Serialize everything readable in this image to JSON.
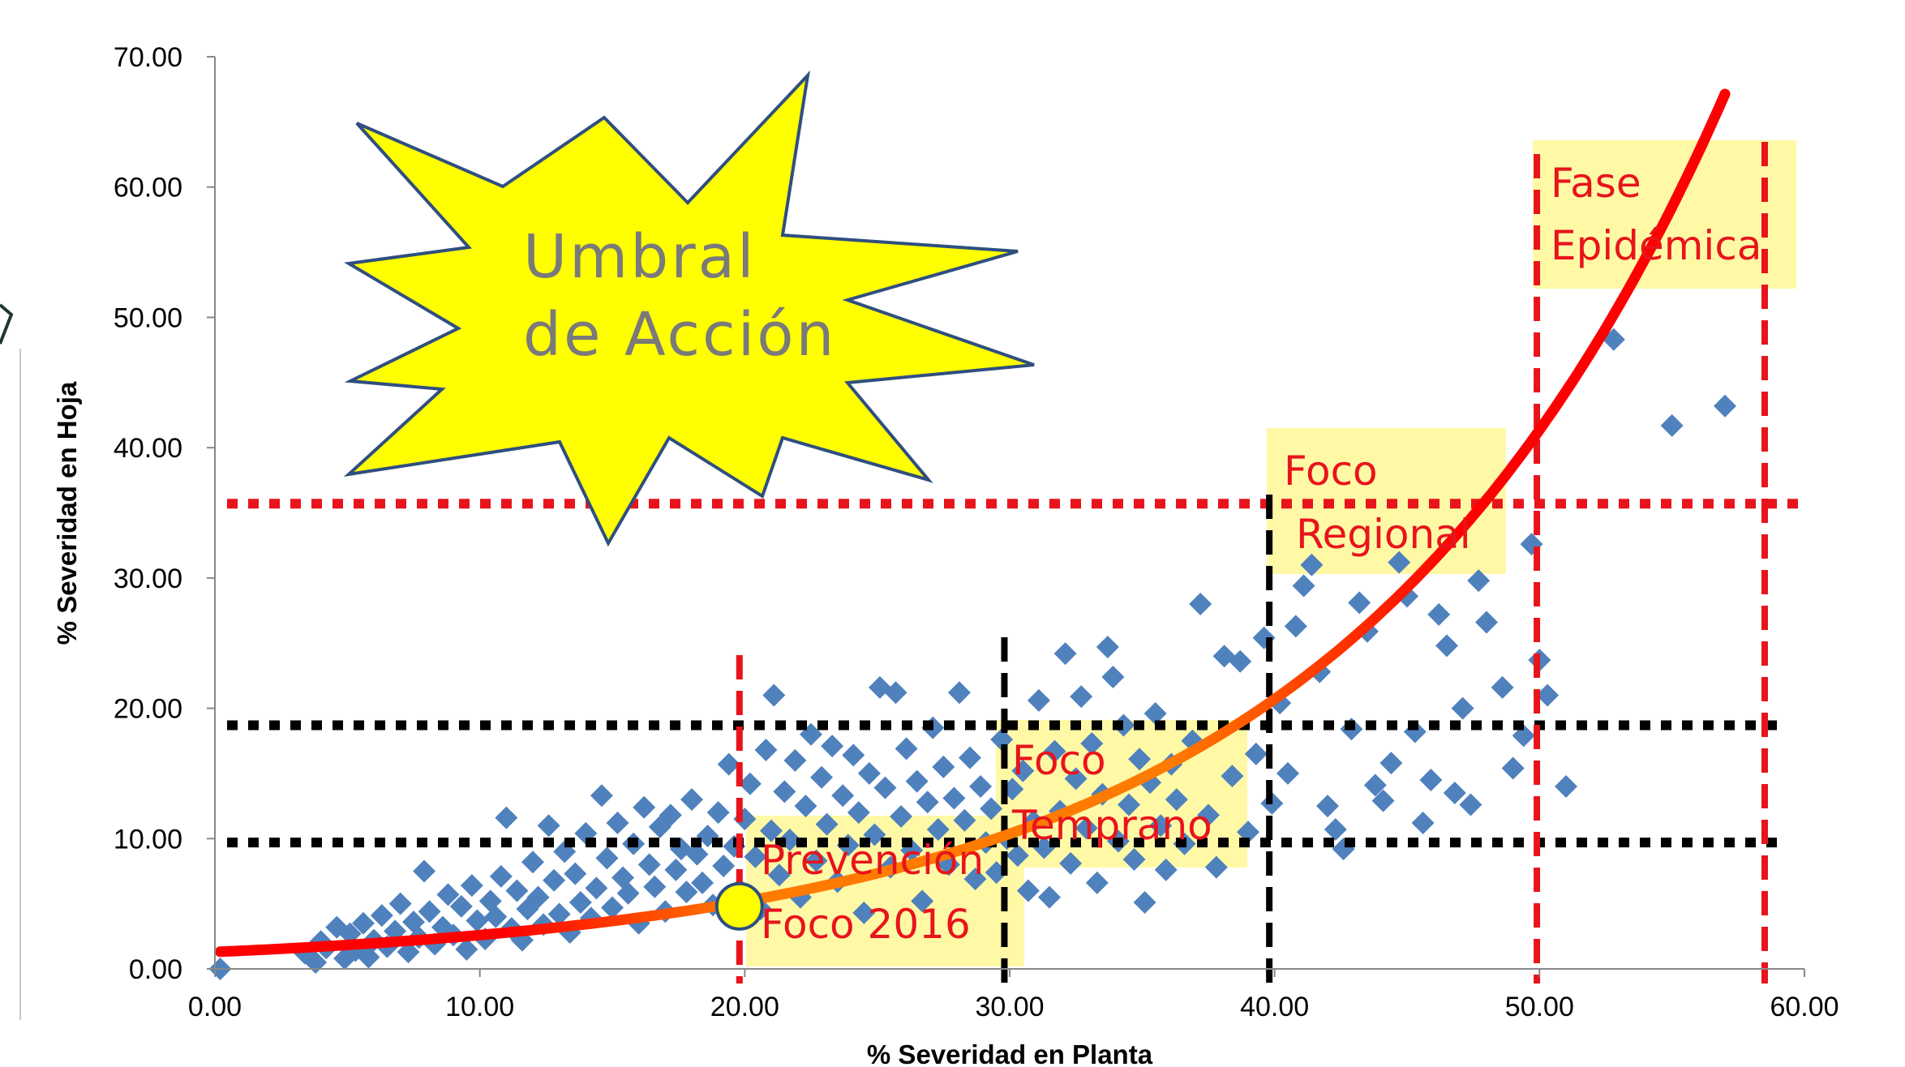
{
  "chart_data": {
    "type": "scatter",
    "title": "",
    "xlabel": "% Severidad en Planta",
    "ylabel": "% Severidad en Hoja",
    "xlim": [
      0,
      60
    ],
    "ylim": [
      0,
      70
    ],
    "x_ticks": [
      "0.00",
      "10.00",
      "20.00",
      "30.00",
      "40.00",
      "50.00",
      "60.00"
    ],
    "y_ticks": [
      "0.00",
      "10.00",
      "20.00",
      "30.00",
      "40.00",
      "50.00",
      "60.00",
      "70.00"
    ],
    "grid": false,
    "legend": "none",
    "colors": {
      "points": "#4f81bd",
      "curve_start": "#ff0000",
      "curve_end": "#ff6a00",
      "threshold_red": "#e8141c",
      "threshold_black": "#000000",
      "zone_fill": "#fff9a6",
      "burst_fill": "#ffff00",
      "burst_stroke": "#2f4f7f"
    },
    "annotation_burst": {
      "line1": "Umbral",
      "line2": "de Acción"
    },
    "zones": [
      {
        "line1": "Prevención",
        "line2": "Foco 2016"
      },
      {
        "line1": "Foco",
        "line2": "Temprano"
      },
      {
        "line1": "Foco",
        "line2": "Regional"
      },
      {
        "line1": "Fase",
        "line2": "Epidémica"
      }
    ],
    "horizontal_thresholds": [
      {
        "y": 35.7,
        "color": "#e8141c"
      },
      {
        "y": 18.7,
        "color": "#000000"
      },
      {
        "y": 9.7,
        "color": "#000000"
      }
    ],
    "vertical_thresholds": [
      {
        "x": 19.8,
        "color": "#e8141c"
      },
      {
        "x": 29.8,
        "color": "#000000"
      },
      {
        "x": 39.8,
        "color": "#000000"
      },
      {
        "x": 49.9,
        "color": "#e8141c"
      },
      {
        "x": 58.5,
        "color": "#e8141c"
      }
    ],
    "action_point": {
      "x": 19.8,
      "y": 4.8
    },
    "trend_curve": {
      "type": "exponential",
      "a": 1.3,
      "b": 0.0692,
      "x_range": [
        0.2,
        57
      ]
    },
    "series": [
      {
        "marker": "diamond",
        "points": [
          [
            0.2,
            0.0
          ],
          [
            3.4,
            1.2
          ],
          [
            3.8,
            0.5
          ],
          [
            4.0,
            2.1
          ],
          [
            4.2,
            1.6
          ],
          [
            4.6,
            3.2
          ],
          [
            4.9,
            0.8
          ],
          [
            5.1,
            2.7
          ],
          [
            5.3,
            1.4
          ],
          [
            5.6,
            3.5
          ],
          [
            5.8,
            0.9
          ],
          [
            6.0,
            2.2
          ],
          [
            6.3,
            4.1
          ],
          [
            6.5,
            1.7
          ],
          [
            6.8,
            2.9
          ],
          [
            7.0,
            5.0
          ],
          [
            7.3,
            1.3
          ],
          [
            7.5,
            3.6
          ],
          [
            7.7,
            2.4
          ],
          [
            7.9,
            7.5
          ],
          [
            8.1,
            4.4
          ],
          [
            8.3,
            1.9
          ],
          [
            8.6,
            3.2
          ],
          [
            8.8,
            5.7
          ],
          [
            9.0,
            2.6
          ],
          [
            9.3,
            4.8
          ],
          [
            9.5,
            1.5
          ],
          [
            9.7,
            6.4
          ],
          [
            9.9,
            3.7
          ],
          [
            10.2,
            2.3
          ],
          [
            10.4,
            5.2
          ],
          [
            10.6,
            4.0
          ],
          [
            10.8,
            7.1
          ],
          [
            11.0,
            11.6
          ],
          [
            11.2,
            3.1
          ],
          [
            11.4,
            6.0
          ],
          [
            11.6,
            2.2
          ],
          [
            11.8,
            4.6
          ],
          [
            12.0,
            8.2
          ],
          [
            12.2,
            5.5
          ],
          [
            12.4,
            3.4
          ],
          [
            12.6,
            11.0
          ],
          [
            12.8,
            6.8
          ],
          [
            13.0,
            4.2
          ],
          [
            13.2,
            9.0
          ],
          [
            13.4,
            2.8
          ],
          [
            13.6,
            7.3
          ],
          [
            13.8,
            5.1
          ],
          [
            14.0,
            10.4
          ],
          [
            14.2,
            3.9
          ],
          [
            14.4,
            6.2
          ],
          [
            14.6,
            13.3
          ],
          [
            14.8,
            8.5
          ],
          [
            15.0,
            4.7
          ],
          [
            15.2,
            11.2
          ],
          [
            15.4,
            7.0
          ],
          [
            15.6,
            5.8
          ],
          [
            15.8,
            9.6
          ],
          [
            16.0,
            3.5
          ],
          [
            16.2,
            12.4
          ],
          [
            16.4,
            8.0
          ],
          [
            16.6,
            6.3
          ],
          [
            16.8,
            10.9
          ],
          [
            17.0,
            4.4
          ],
          [
            17.2,
            11.8
          ],
          [
            17.4,
            7.6
          ],
          [
            17.6,
            9.2
          ],
          [
            17.8,
            5.9
          ],
          [
            18.0,
            13.0
          ],
          [
            18.2,
            8.8
          ],
          [
            18.4,
            6.6
          ],
          [
            18.6,
            10.2
          ],
          [
            18.8,
            4.9
          ],
          [
            19.0,
            12.0
          ],
          [
            19.2,
            7.9
          ],
          [
            19.4,
            15.7
          ],
          [
            19.6,
            9.4
          ],
          [
            19.8,
            6.1
          ],
          [
            20.0,
            11.5
          ],
          [
            20.2,
            14.2
          ],
          [
            20.4,
            8.6
          ],
          [
            20.6,
            4.6
          ],
          [
            20.8,
            16.8
          ],
          [
            21.0,
            10.6
          ],
          [
            21.1,
            21.0
          ],
          [
            21.3,
            7.2
          ],
          [
            21.5,
            13.6
          ],
          [
            21.7,
            9.9
          ],
          [
            21.9,
            16.0
          ],
          [
            22.1,
            5.5
          ],
          [
            22.3,
            12.5
          ],
          [
            22.5,
            18.0
          ],
          [
            22.7,
            8.3
          ],
          [
            22.9,
            14.7
          ],
          [
            23.1,
            11.1
          ],
          [
            23.3,
            17.1
          ],
          [
            23.5,
            6.7
          ],
          [
            23.7,
            13.3
          ],
          [
            23.9,
            9.5
          ],
          [
            24.1,
            16.4
          ],
          [
            24.3,
            12.0
          ],
          [
            24.5,
            4.3
          ],
          [
            24.7,
            15.0
          ],
          [
            24.9,
            10.3
          ],
          [
            25.1,
            21.6
          ],
          [
            25.3,
            13.9
          ],
          [
            25.5,
            7.8
          ],
          [
            25.7,
            21.2
          ],
          [
            25.9,
            11.7
          ],
          [
            26.1,
            16.9
          ],
          [
            26.3,
            9.1
          ],
          [
            26.5,
            14.4
          ],
          [
            26.7,
            5.2
          ],
          [
            26.9,
            12.8
          ],
          [
            27.1,
            18.5
          ],
          [
            27.3,
            10.7
          ],
          [
            27.5,
            15.5
          ],
          [
            27.7,
            8.0
          ],
          [
            27.9,
            13.1
          ],
          [
            28.1,
            21.2
          ],
          [
            28.3,
            11.4
          ],
          [
            28.5,
            16.2
          ],
          [
            28.7,
            6.9
          ],
          [
            28.9,
            14.0
          ],
          [
            29.1,
            9.7
          ],
          [
            29.3,
            12.3
          ],
          [
            29.5,
            7.4
          ],
          [
            29.7,
            17.6
          ],
          [
            29.9,
            10.0
          ],
          [
            30.1,
            13.8
          ],
          [
            30.3,
            8.7
          ],
          [
            30.5,
            15.2
          ],
          [
            30.7,
            6.0
          ],
          [
            30.9,
            11.3
          ],
          [
            31.1,
            20.6
          ],
          [
            31.3,
            9.3
          ],
          [
            31.5,
            5.5
          ],
          [
            31.7,
            16.7
          ],
          [
            31.9,
            12.1
          ],
          [
            32.1,
            24.2
          ],
          [
            32.3,
            8.1
          ],
          [
            32.5,
            14.6
          ],
          [
            32.7,
            20.9
          ],
          [
            32.9,
            10.8
          ],
          [
            33.1,
            17.3
          ],
          [
            33.3,
            6.6
          ],
          [
            33.5,
            13.4
          ],
          [
            33.7,
            24.7
          ],
          [
            33.9,
            22.4
          ],
          [
            34.1,
            9.8
          ],
          [
            34.3,
            18.7
          ],
          [
            34.5,
            12.6
          ],
          [
            34.7,
            8.4
          ],
          [
            34.9,
            16.1
          ],
          [
            35.1,
            5.1
          ],
          [
            35.3,
            14.3
          ],
          [
            35.5,
            19.6
          ],
          [
            35.7,
            11.0
          ],
          [
            35.9,
            7.6
          ],
          [
            36.1,
            15.7
          ],
          [
            36.3,
            13.0
          ],
          [
            36.6,
            9.6
          ],
          [
            36.9,
            17.5
          ],
          [
            37.2,
            28.0
          ],
          [
            37.5,
            11.8
          ],
          [
            37.8,
            7.8
          ],
          [
            38.1,
            24.0
          ],
          [
            38.4,
            14.8
          ],
          [
            38.7,
            23.6
          ],
          [
            39.0,
            10.5
          ],
          [
            39.3,
            16.5
          ],
          [
            39.6,
            25.4
          ],
          [
            39.9,
            12.7
          ],
          [
            40.2,
            20.4
          ],
          [
            40.5,
            15.0
          ],
          [
            40.8,
            26.3
          ],
          [
            41.1,
            29.4
          ],
          [
            41.4,
            31.0
          ],
          [
            41.7,
            22.8
          ],
          [
            42.0,
            12.5
          ],
          [
            42.3,
            10.7
          ],
          [
            42.6,
            9.2
          ],
          [
            42.9,
            18.4
          ],
          [
            43.2,
            28.1
          ],
          [
            43.5,
            25.9
          ],
          [
            43.8,
            14.1
          ],
          [
            44.1,
            12.9
          ],
          [
            44.4,
            15.8
          ],
          [
            44.7,
            31.2
          ],
          [
            45.0,
            28.6
          ],
          [
            45.3,
            18.2
          ],
          [
            45.6,
            11.2
          ],
          [
            45.9,
            14.5
          ],
          [
            46.2,
            27.2
          ],
          [
            46.5,
            24.8
          ],
          [
            46.8,
            13.5
          ],
          [
            47.1,
            20.0
          ],
          [
            47.4,
            12.6
          ],
          [
            47.7,
            29.8
          ],
          [
            48.0,
            26.6
          ],
          [
            48.6,
            21.6
          ],
          [
            49.0,
            15.4
          ],
          [
            49.4,
            17.9
          ],
          [
            49.7,
            32.6
          ],
          [
            50.0,
            23.7
          ],
          [
            50.3,
            21.0
          ],
          [
            51.0,
            14.0
          ],
          [
            52.8,
            48.3
          ],
          [
            55.0,
            41.7
          ],
          [
            57.0,
            43.2
          ]
        ]
      }
    ]
  }
}
